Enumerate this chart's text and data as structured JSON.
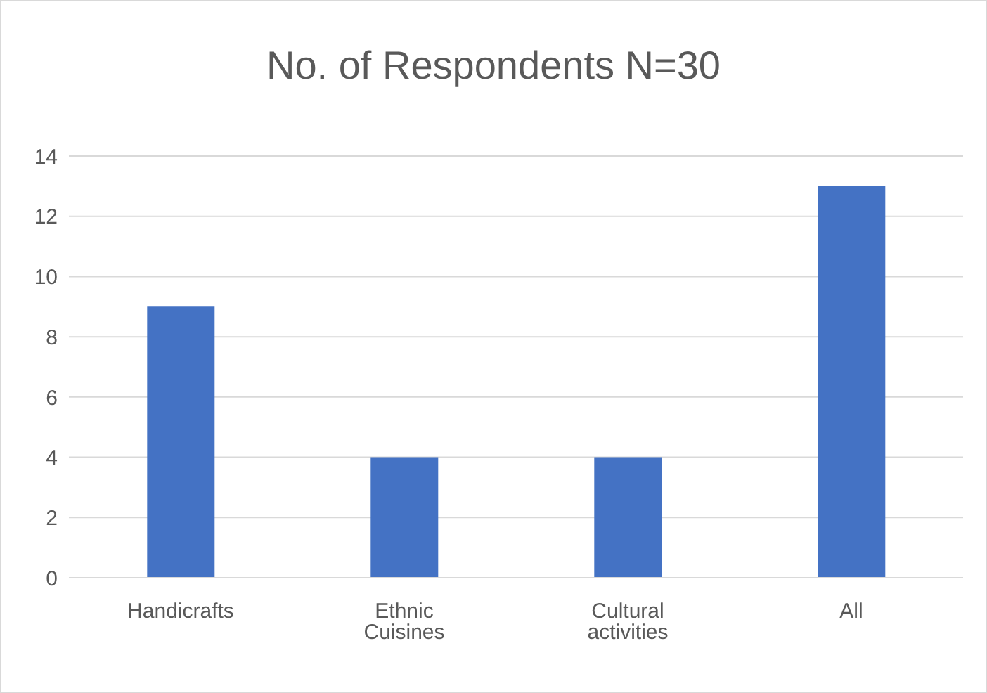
{
  "chart_data": {
    "type": "bar",
    "title": "No. of Respondents N=30",
    "categories": [
      "Handicrafts",
      "Ethnic Cuisines",
      "Cultural activities",
      "All"
    ],
    "values": [
      9,
      4,
      4,
      13
    ],
    "color": "#4472c4",
    "ylim": [
      0,
      14
    ],
    "yticks": [
      0,
      2,
      4,
      6,
      8,
      10,
      12,
      14
    ],
    "grid": "y"
  }
}
